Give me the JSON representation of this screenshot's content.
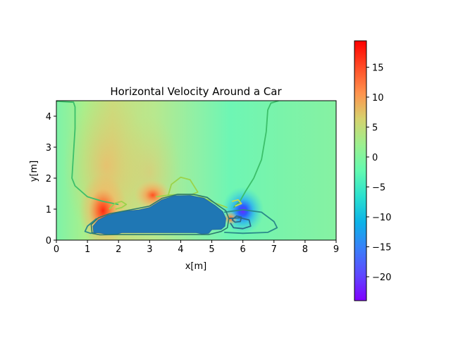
{
  "chart_data": {
    "type": "heatmap",
    "title": "Horizontal Velocity Around a Car",
    "xlabel": "x[m]",
    "ylabel": "y[m]",
    "xlim": [
      0,
      9
    ],
    "ylim": [
      0,
      4.5
    ],
    "x_ticks": [
      "0",
      "1",
      "2",
      "3",
      "4",
      "5",
      "6",
      "7",
      "8",
      "9"
    ],
    "y_ticks": [
      "0",
      "1",
      "2",
      "3",
      "4"
    ],
    "colorbar": {
      "range": [
        -24,
        19.4
      ],
      "ticks": [
        "15",
        "10",
        "5",
        "0",
        "−5",
        "−10",
        "−15",
        "−20"
      ],
      "colormap": "rainbow"
    },
    "car_color": "#1f77b4",
    "features": [
      {
        "name": "front-stagnation-high",
        "x": 1.5,
        "y": 0.95,
        "value": 19
      },
      {
        "name": "roof-front-high",
        "x": 3.1,
        "y": 1.45,
        "value": 13
      },
      {
        "name": "rear-suction-low",
        "x": 6.0,
        "y": 0.95,
        "value": -23
      },
      {
        "name": "rear-wake-high",
        "x": 5.6,
        "y": 0.7,
        "value": 12
      }
    ]
  }
}
